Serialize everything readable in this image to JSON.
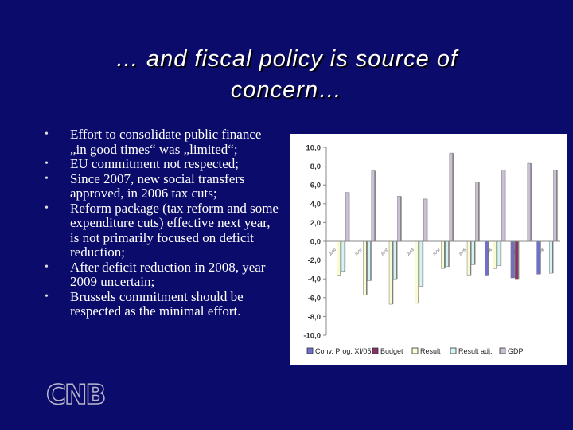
{
  "title": "… and fiscal policy is source of concern…",
  "bullets": [
    "Effort to consolidate public finance „in good times“ was „limited“;",
    "EU commitment not respected;",
    "Since 2007, new social transfers approved, in 2006 tax cuts;",
    "Reform package (tax reform and some expenditure cuts) effective next year, is not primarily focused on deficit reduction;",
    "After deficit reduction in 2008, year 2009 uncertain;",
    "Brussels commitment should be respected as the minimal effort."
  ],
  "logo": "CNB",
  "chart_data": {
    "type": "bar",
    "categories": [
      "2000",
      "2001",
      "2002",
      "2003",
      "2004",
      "2005",
      "2006",
      "2007",
      "2008"
    ],
    "series": [
      {
        "name": "Conv. Prog. XI/05",
        "color": "#6f6fd0",
        "values": [
          null,
          null,
          null,
          null,
          null,
          null,
          -3.6,
          -3.9,
          -3.5
        ]
      },
      {
        "name": "Budget",
        "color": "#8a2f6a",
        "values": [
          null,
          null,
          null,
          null,
          null,
          null,
          null,
          -4.0,
          null
        ]
      },
      {
        "name": "Result",
        "color": "#fbfbd2",
        "values": [
          -3.6,
          -5.7,
          -6.7,
          -6.6,
          -2.9,
          -3.6,
          -2.9,
          null,
          null
        ]
      },
      {
        "name": "Result adj.",
        "color": "#d2f4f4",
        "values": [
          -3.2,
          -4.2,
          -4.0,
          -4.8,
          -2.7,
          -2.5,
          -2.6,
          null,
          -3.4
        ]
      },
      {
        "name": "GDP",
        "color": "#cbbfd6",
        "values": [
          5.2,
          7.5,
          4.8,
          4.5,
          9.4,
          6.3,
          7.6,
          8.3,
          7.6
        ]
      }
    ],
    "ylim": [
      -10,
      10
    ],
    "yticks": [
      {
        "value": -10,
        "label": "-10,0"
      },
      {
        "value": -8,
        "label": "-8,0"
      },
      {
        "value": -6,
        "label": "-6,0"
      },
      {
        "value": -4,
        "label": "-4,0"
      },
      {
        "value": -2,
        "label": "-2,0"
      },
      {
        "value": 0,
        "label": "0,0"
      },
      {
        "value": 2,
        "label": "2,0"
      },
      {
        "value": 4,
        "label": "4,0"
      },
      {
        "value": 6,
        "label": "6,0"
      },
      {
        "value": 8,
        "label": "8,0"
      },
      {
        "value": 10,
        "label": "10,0"
      }
    ]
  }
}
